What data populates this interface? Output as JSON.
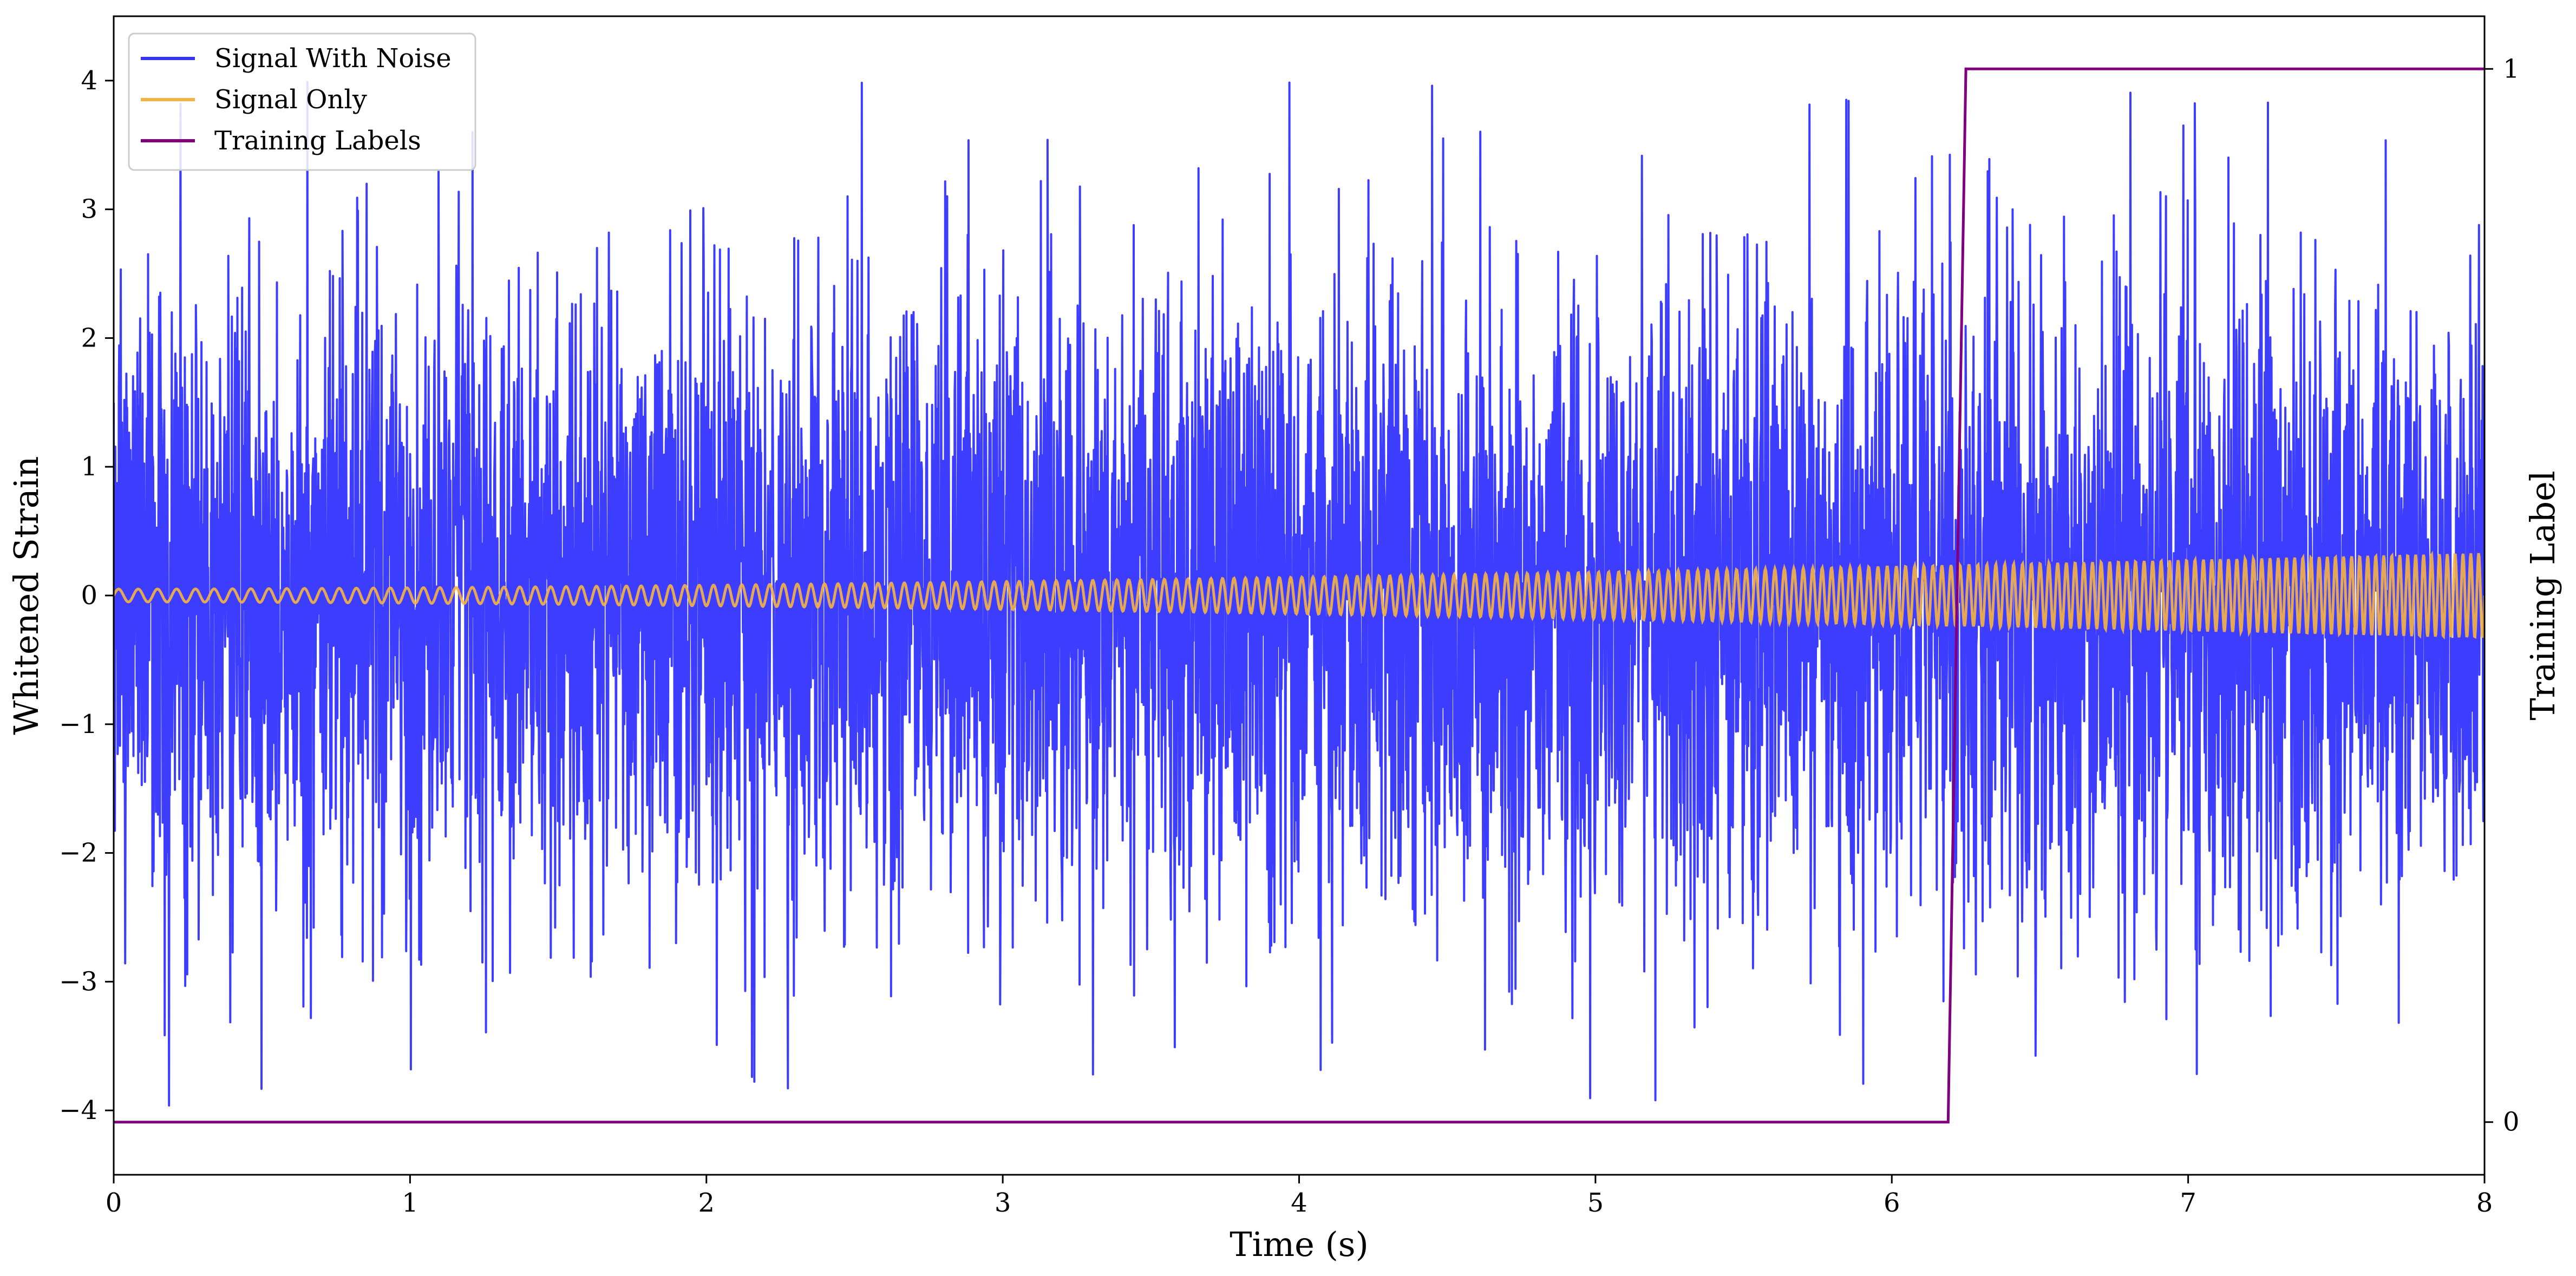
{
  "chart_data": {
    "type": "line",
    "xlabel": "Time (s)",
    "ylabel": "Whitened Strain",
    "ylabel_right": "Training Label",
    "xlim": [
      0,
      8
    ],
    "ylim": [
      -4.5,
      4.5
    ],
    "ylim_right": [
      -0.05,
      1.05
    ],
    "x_ticks": [
      0,
      1,
      2,
      3,
      4,
      5,
      6,
      7,
      8
    ],
    "y_ticks": [
      -4,
      -3,
      -2,
      -1,
      0,
      1,
      2,
      3,
      4
    ],
    "y_tick_labels": [
      "−4",
      "−3",
      "−2",
      "−1",
      "0",
      "1",
      "2",
      "3",
      "4"
    ],
    "y_ticks_right": [
      0,
      1
    ],
    "legend_position": "top-left",
    "grid": false,
    "series": [
      {
        "name": "Signal With Noise",
        "color": "#3333ff",
        "axis": "left",
        "description_noise_std": 1.2,
        "peak_range": [
          -4.0,
          4.0
        ]
      },
      {
        "name": "Signal Only",
        "color": "#f5b342",
        "axis": "left",
        "chirp": {
          "start_amplitude": 0.05,
          "end_amplitude": 0.33,
          "start_frequency_hz": 15,
          "end_frequency_hz": 38
        }
      },
      {
        "name": "Training Labels",
        "color": "#800080",
        "axis": "right",
        "x": [
          0,
          6.19,
          6.25,
          8
        ],
        "y": [
          0,
          0,
          1,
          1
        ]
      }
    ]
  }
}
